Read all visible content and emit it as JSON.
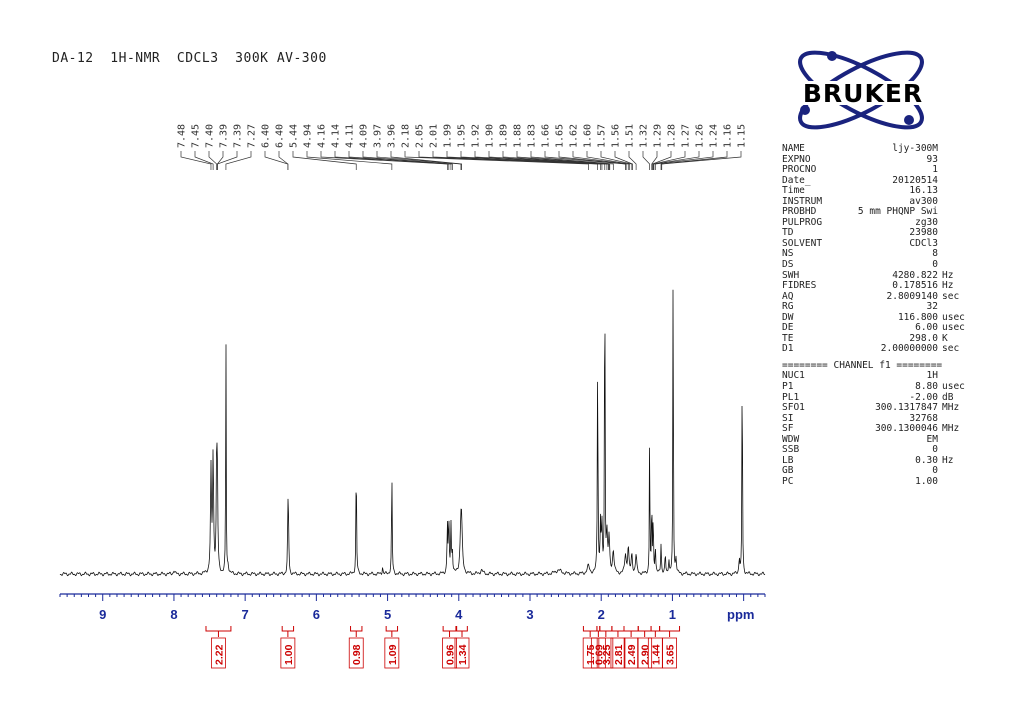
{
  "header": {
    "title": "DA-12  1H-NMR  CDCL3  300K AV-300"
  },
  "logo": {
    "text": "BRUKER",
    "color": "#1a237e"
  },
  "colors": {
    "axis": "#1a2a9a",
    "integral": "#cc0000",
    "trace": "#111111"
  },
  "parameters": [
    {
      "name": "NAME",
      "value": "ljy-300M",
      "unit": ""
    },
    {
      "name": "EXPNO",
      "value": "93",
      "unit": ""
    },
    {
      "name": "PROCNO",
      "value": "1",
      "unit": ""
    },
    {
      "name": "Date_",
      "value": "20120514",
      "unit": ""
    },
    {
      "name": "Time",
      "value": "16.13",
      "unit": ""
    },
    {
      "name": "INSTRUM",
      "value": "av300",
      "unit": ""
    },
    {
      "name": "PROBHD",
      "value": "5 mm PHQNP Swi",
      "unit": ""
    },
    {
      "name": "PULPROG",
      "value": "zg30",
      "unit": ""
    },
    {
      "name": "TD",
      "value": "23980",
      "unit": ""
    },
    {
      "name": "SOLVENT",
      "value": "CDCl3",
      "unit": ""
    },
    {
      "name": "NS",
      "value": "8",
      "unit": ""
    },
    {
      "name": "DS",
      "value": "0",
      "unit": ""
    },
    {
      "name": "SWH",
      "value": "4280.822",
      "unit": "Hz"
    },
    {
      "name": "FIDRES",
      "value": "0.178516",
      "unit": "Hz"
    },
    {
      "name": "AQ",
      "value": "2.8009140",
      "unit": "sec"
    },
    {
      "name": "RG",
      "value": "32",
      "unit": ""
    },
    {
      "name": "DW",
      "value": "116.800",
      "unit": "usec"
    },
    {
      "name": "DE",
      "value": "6.00",
      "unit": "usec"
    },
    {
      "name": "TE",
      "value": "298.0",
      "unit": "K"
    },
    {
      "name": "D1",
      "value": "2.00000000",
      "unit": "sec"
    }
  ],
  "channel_header": "======== CHANNEL f1 ========",
  "channel_parameters": [
    {
      "name": "NUC1",
      "value": "1H",
      "unit": ""
    },
    {
      "name": "P1",
      "value": "8.80",
      "unit": "usec"
    },
    {
      "name": "PL1",
      "value": "-2.00",
      "unit": "dB"
    },
    {
      "name": "SFO1",
      "value": "300.1317847",
      "unit": "MHz"
    },
    {
      "name": "SI",
      "value": "32768",
      "unit": ""
    },
    {
      "name": "SF",
      "value": "300.1300046",
      "unit": "MHz"
    },
    {
      "name": "WDW",
      "value": "EM",
      "unit": ""
    },
    {
      "name": "SSB",
      "value": "0",
      "unit": ""
    },
    {
      "name": "LB",
      "value": "0.30",
      "unit": "Hz"
    },
    {
      "name": "GB",
      "value": "0",
      "unit": ""
    },
    {
      "name": "PC",
      "value": "1.00",
      "unit": ""
    }
  ],
  "chart_data": {
    "type": "line",
    "title": "DA-12  1H-NMR  CDCL3  300K AV-300",
    "xlabel": "ppm",
    "xlim": [
      9.6,
      -0.3
    ],
    "ylim": [
      0,
      1.0
    ],
    "x_ticks": [
      "9",
      "8",
      "7",
      "6",
      "5",
      "4",
      "3",
      "2",
      "1"
    ],
    "grid": false,
    "peak_labels": [
      "7.48",
      "7.45",
      "7.40",
      "7.39",
      "7.39",
      "7.27",
      "6.40",
      "6.40",
      "5.44",
      "4.94",
      "4.16",
      "4.14",
      "4.11",
      "4.09",
      "3.97",
      "3.96",
      "2.18",
      "2.05",
      "2.01",
      "1.99",
      "1.95",
      "1.92",
      "1.90",
      "1.89",
      "1.88",
      "1.83",
      "1.66",
      "1.65",
      "1.62",
      "1.60",
      "1.57",
      "1.56",
      "1.51",
      "1.32",
      "1.29",
      "1.28",
      "1.27",
      "1.26",
      "1.24",
      "1.16",
      "1.15"
    ],
    "peak_groups": [
      {
        "positions": [
          7.48,
          7.45,
          7.4,
          7.39,
          7.39,
          7.27
        ],
        "labels": [
          0,
          1,
          2,
          3,
          4,
          5
        ]
      },
      {
        "positions": [
          6.4,
          6.4
        ],
        "labels": [
          6,
          7
        ]
      },
      {
        "positions": [
          5.44,
          4.94,
          4.16,
          4.14,
          4.11,
          4.09,
          3.97,
          3.96
        ],
        "labels": [
          8,
          9,
          10,
          11,
          12,
          13,
          14,
          15
        ]
      },
      {
        "positions": [
          2.18,
          2.05,
          2.01,
          1.99,
          1.95,
          1.92,
          1.9,
          1.89,
          1.88,
          1.83,
          1.66,
          1.65,
          1.62,
          1.6,
          1.57,
          1.56,
          1.51
        ],
        "labels": [
          16,
          17,
          18,
          19,
          20,
          21,
          22,
          23,
          24,
          25,
          26,
          27,
          28,
          29,
          30,
          31,
          32
        ]
      },
      {
        "positions": [
          1.32,
          1.29,
          1.28,
          1.27,
          1.26,
          1.24,
          1.16,
          1.15
        ],
        "labels": [
          33,
          34,
          35,
          36,
          37,
          38,
          39,
          40
        ]
      }
    ],
    "peaks": [
      {
        "ppm": 7.48,
        "h": 0.27,
        "w": 0.008
      },
      {
        "ppm": 7.45,
        "h": 0.31,
        "w": 0.008
      },
      {
        "ppm": 7.4,
        "h": 0.28,
        "w": 0.007
      },
      {
        "ppm": 7.39,
        "h": 0.22,
        "w": 0.007
      },
      {
        "ppm": 7.27,
        "h": 0.64,
        "w": 0.004
      },
      {
        "ppm": 7.24,
        "h": 0.02,
        "w": 0.01
      },
      {
        "ppm": 8.0,
        "h": 0.01,
        "w": 0.01
      },
      {
        "ppm": 6.4,
        "h": 0.18,
        "w": 0.005
      },
      {
        "ppm": 6.39,
        "h": 0.12,
        "w": 0.005
      },
      {
        "ppm": 5.44,
        "h": 0.31,
        "w": 0.005
      },
      {
        "ppm": 5.07,
        "h": 0.02,
        "w": 0.006
      },
      {
        "ppm": 4.94,
        "h": 0.28,
        "w": 0.005
      },
      {
        "ppm": 4.16,
        "h": 0.13,
        "w": 0.006
      },
      {
        "ppm": 4.14,
        "h": 0.14,
        "w": 0.006
      },
      {
        "ppm": 4.11,
        "h": 0.13,
        "w": 0.006
      },
      {
        "ppm": 4.09,
        "h": 0.06,
        "w": 0.006
      },
      {
        "ppm": 3.97,
        "h": 0.12,
        "w": 0.014
      },
      {
        "ppm": 3.96,
        "h": 0.08,
        "w": 0.012
      },
      {
        "ppm": 3.68,
        "h": 0.01,
        "w": 0.02
      },
      {
        "ppm": 2.6,
        "h": 0.01,
        "w": 0.05
      },
      {
        "ppm": 2.18,
        "h": 0.02,
        "w": 0.02
      },
      {
        "ppm": 2.05,
        "h": 0.59,
        "w": 0.005
      },
      {
        "ppm": 2.01,
        "h": 0.13,
        "w": 0.007
      },
      {
        "ppm": 1.99,
        "h": 0.12,
        "w": 0.007
      },
      {
        "ppm": 1.95,
        "h": 1.0,
        "w": 0.004
      },
      {
        "ppm": 1.92,
        "h": 0.1,
        "w": 0.01
      },
      {
        "ppm": 1.89,
        "h": 0.09,
        "w": 0.01
      },
      {
        "ppm": 1.83,
        "h": 0.06,
        "w": 0.012
      },
      {
        "ppm": 1.66,
        "h": 0.05,
        "w": 0.012
      },
      {
        "ppm": 1.62,
        "h": 0.07,
        "w": 0.01
      },
      {
        "ppm": 1.57,
        "h": 0.05,
        "w": 0.01
      },
      {
        "ppm": 1.51,
        "h": 0.05,
        "w": 0.01
      },
      {
        "ppm": 1.32,
        "h": 0.4,
        "w": 0.004
      },
      {
        "ppm": 1.29,
        "h": 0.19,
        "w": 0.005
      },
      {
        "ppm": 1.27,
        "h": 0.15,
        "w": 0.005
      },
      {
        "ppm": 1.24,
        "h": 0.07,
        "w": 0.006
      },
      {
        "ppm": 1.16,
        "h": 0.08,
        "w": 0.006
      },
      {
        "ppm": 1.1,
        "h": 0.05,
        "w": 0.006
      },
      {
        "ppm": 1.05,
        "h": 0.04,
        "w": 0.006
      },
      {
        "ppm": 0.99,
        "h": 0.91,
        "w": 0.004
      },
      {
        "ppm": 0.95,
        "h": 0.04,
        "w": 0.008
      },
      {
        "ppm": 0.02,
        "h": 0.68,
        "w": 0.004
      },
      {
        "ppm": 0.06,
        "h": 0.04,
        "w": 0.008
      }
    ],
    "integrals": [
      {
        "label": "2.22",
        "from": 7.55,
        "to": 7.2
      },
      {
        "label": "1.00",
        "from": 6.48,
        "to": 6.32
      },
      {
        "label": "0.98",
        "from": 5.52,
        "to": 5.36
      },
      {
        "label": "1.09",
        "from": 5.02,
        "to": 4.86
      },
      {
        "label": "0.96",
        "from": 4.22,
        "to": 4.04
      },
      {
        "label": "1.34",
        "from": 4.03,
        "to": 3.88
      },
      {
        "label": "1.75",
        "from": 2.25,
        "to": 2.06
      },
      {
        "label": "0.69",
        "from": 2.06,
        "to": 2.02
      },
      {
        "label": "3.25",
        "from": 2.02,
        "to": 1.85
      },
      {
        "label": "2.81",
        "from": 1.85,
        "to": 1.68
      },
      {
        "label": "2.49",
        "from": 1.68,
        "to": 1.48
      },
      {
        "label": "2.90",
        "from": 1.48,
        "to": 1.3
      },
      {
        "label": "1.44",
        "from": 1.3,
        "to": 1.18
      },
      {
        "label": "3.65",
        "from": 1.18,
        "to": 0.9
      }
    ]
  }
}
